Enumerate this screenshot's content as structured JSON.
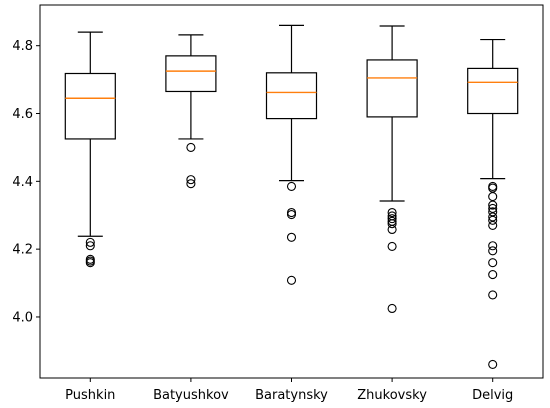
{
  "chart_data": {
    "type": "box",
    "title": "",
    "xlabel": "",
    "ylabel": "",
    "ylim": [
      3.82,
      4.92
    ],
    "yticks": [
      4.0,
      4.2,
      4.4,
      4.6,
      4.8
    ],
    "ytick_labels": [
      "4.0",
      "4.2",
      "4.4",
      "4.6",
      "4.8"
    ],
    "grid": false,
    "colors": {
      "box": "#000000",
      "median": "#ff7f0e",
      "background": "#ffffff"
    },
    "categories": [
      "Pushkin",
      "Batyushkov",
      "Baratynsky",
      "Zhukovsky",
      "Delvig"
    ],
    "boxes": [
      {
        "name": "Pushkin",
        "whisker_low": 4.238,
        "q1": 4.525,
        "median": 4.645,
        "q3": 4.718,
        "whisker_high": 4.84,
        "outliers": [
          4.22,
          4.21,
          4.17,
          4.165,
          4.16
        ]
      },
      {
        "name": "Batyushkov",
        "whisker_low": 4.525,
        "q1": 4.665,
        "median": 4.725,
        "q3": 4.77,
        "whisker_high": 4.832,
        "outliers": [
          4.5,
          4.405,
          4.393
        ]
      },
      {
        "name": "Baratynsky",
        "whisker_low": 4.402,
        "q1": 4.585,
        "median": 4.662,
        "q3": 4.72,
        "whisker_high": 4.86,
        "outliers": [
          4.385,
          4.308,
          4.302,
          4.235,
          4.108
        ]
      },
      {
        "name": "Zhukovsky",
        "whisker_low": 4.342,
        "q1": 4.59,
        "median": 4.705,
        "q3": 4.758,
        "whisker_high": 4.858,
        "outliers": [
          4.308,
          4.298,
          4.29,
          4.282,
          4.275,
          4.258,
          4.208,
          4.025
        ]
      },
      {
        "name": "Delvig",
        "whisker_low": 4.408,
        "q1": 4.6,
        "median": 4.692,
        "q3": 4.733,
        "whisker_high": 4.818,
        "outliers": [
          4.385,
          4.38,
          4.355,
          4.33,
          4.32,
          4.31,
          4.295,
          4.285,
          4.27,
          4.21,
          4.195,
          4.16,
          4.125,
          4.065,
          3.86
        ]
      }
    ]
  }
}
